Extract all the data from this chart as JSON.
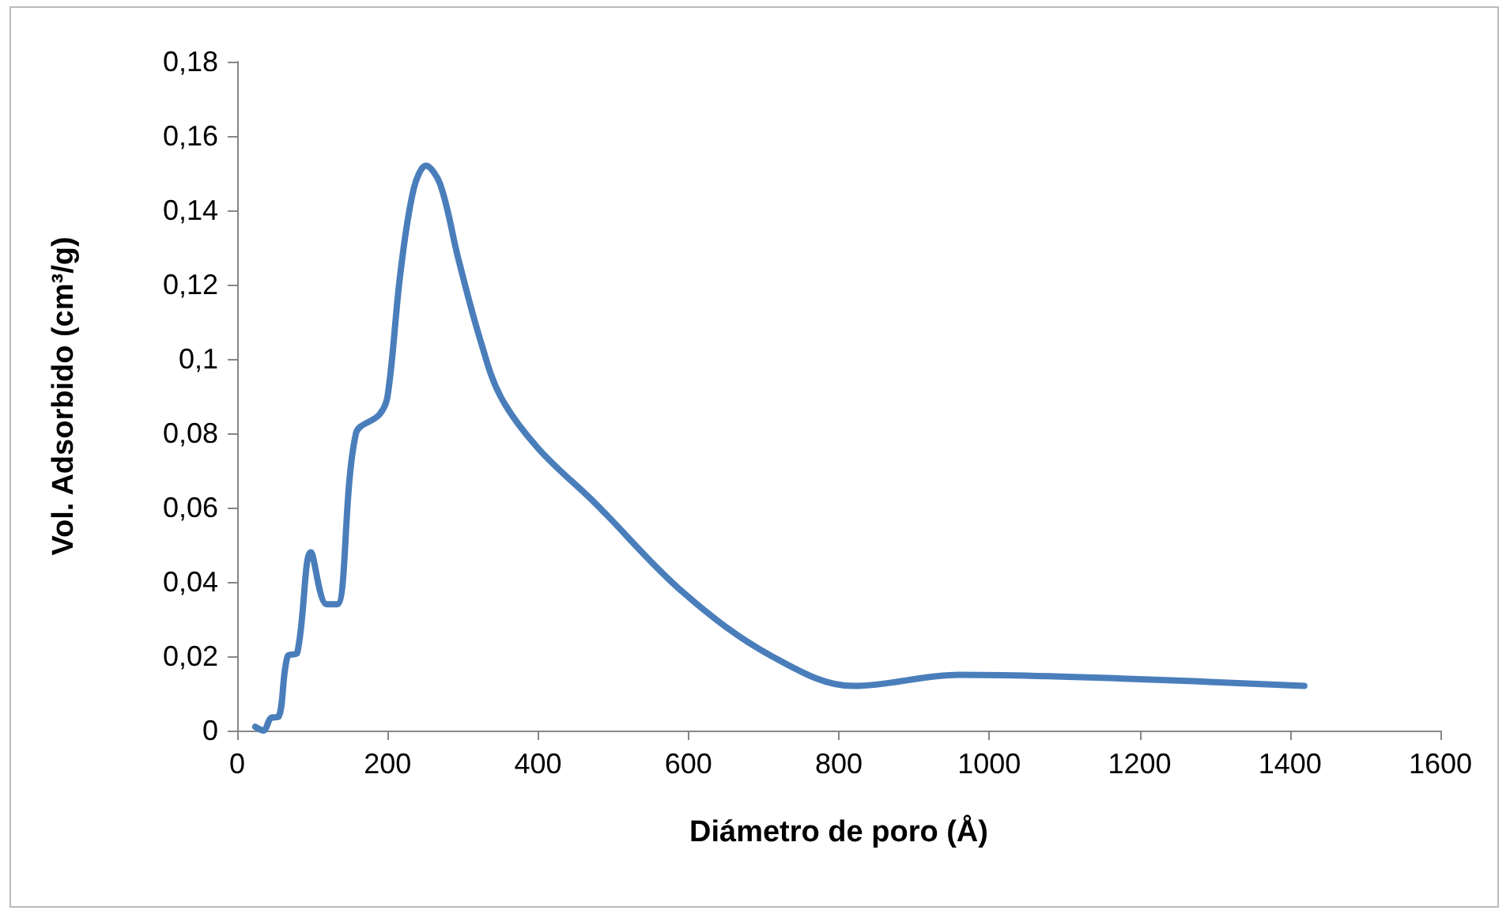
{
  "chart_data": {
    "type": "line",
    "xlabel": "Diámetro de poro (Å)",
    "ylabel": "Vol. Adsorbido (cm³/g)",
    "x": [
      24,
      35,
      45,
      55,
      67,
      80,
      98,
      119,
      133,
      158,
      189,
      200,
      217,
      235,
      251,
      270,
      294,
      322,
      350,
      400,
      477,
      594,
      711,
      820,
      960,
      1177,
      1419
    ],
    "series": [
      {
        "color": "#4a7ebb",
        "values": [
          0.001,
          0,
          0.0034,
          0.0037,
          0.02,
          0.021,
          0.048,
          0.034,
          0.034,
          0.08,
          0.085,
          0.09,
          0.123,
          0.146,
          0.152,
          0.147,
          0.127,
          0.106,
          0.09,
          0.076,
          0.061,
          0.037,
          0.02,
          0.012,
          0.015,
          0.014,
          0.012
        ]
      }
    ],
    "xlim": [
      0,
      1600
    ],
    "xticks": [
      0,
      200,
      400,
      600,
      800,
      1000,
      1200,
      1400,
      1600
    ],
    "ylim": [
      0,
      0.18
    ],
    "yticks": [
      0,
      {
        "value": 0.02,
        "label": "0,02"
      },
      {
        "value": 0.04,
        "label": "0,04"
      },
      {
        "value": 0.06,
        "label": "0,06"
      },
      {
        "value": 0.08,
        "label": "0,08"
      },
      {
        "value": 0.1,
        "label": "0,1"
      },
      {
        "value": 0.12,
        "label": "0,12"
      },
      {
        "value": 0.14,
        "label": "0,14"
      },
      {
        "value": 0.16,
        "label": "0,16"
      },
      {
        "value": 0.18,
        "label": "0,18"
      }
    ],
    "grid": false,
    "marker": "none",
    "line_style": "solid"
  }
}
